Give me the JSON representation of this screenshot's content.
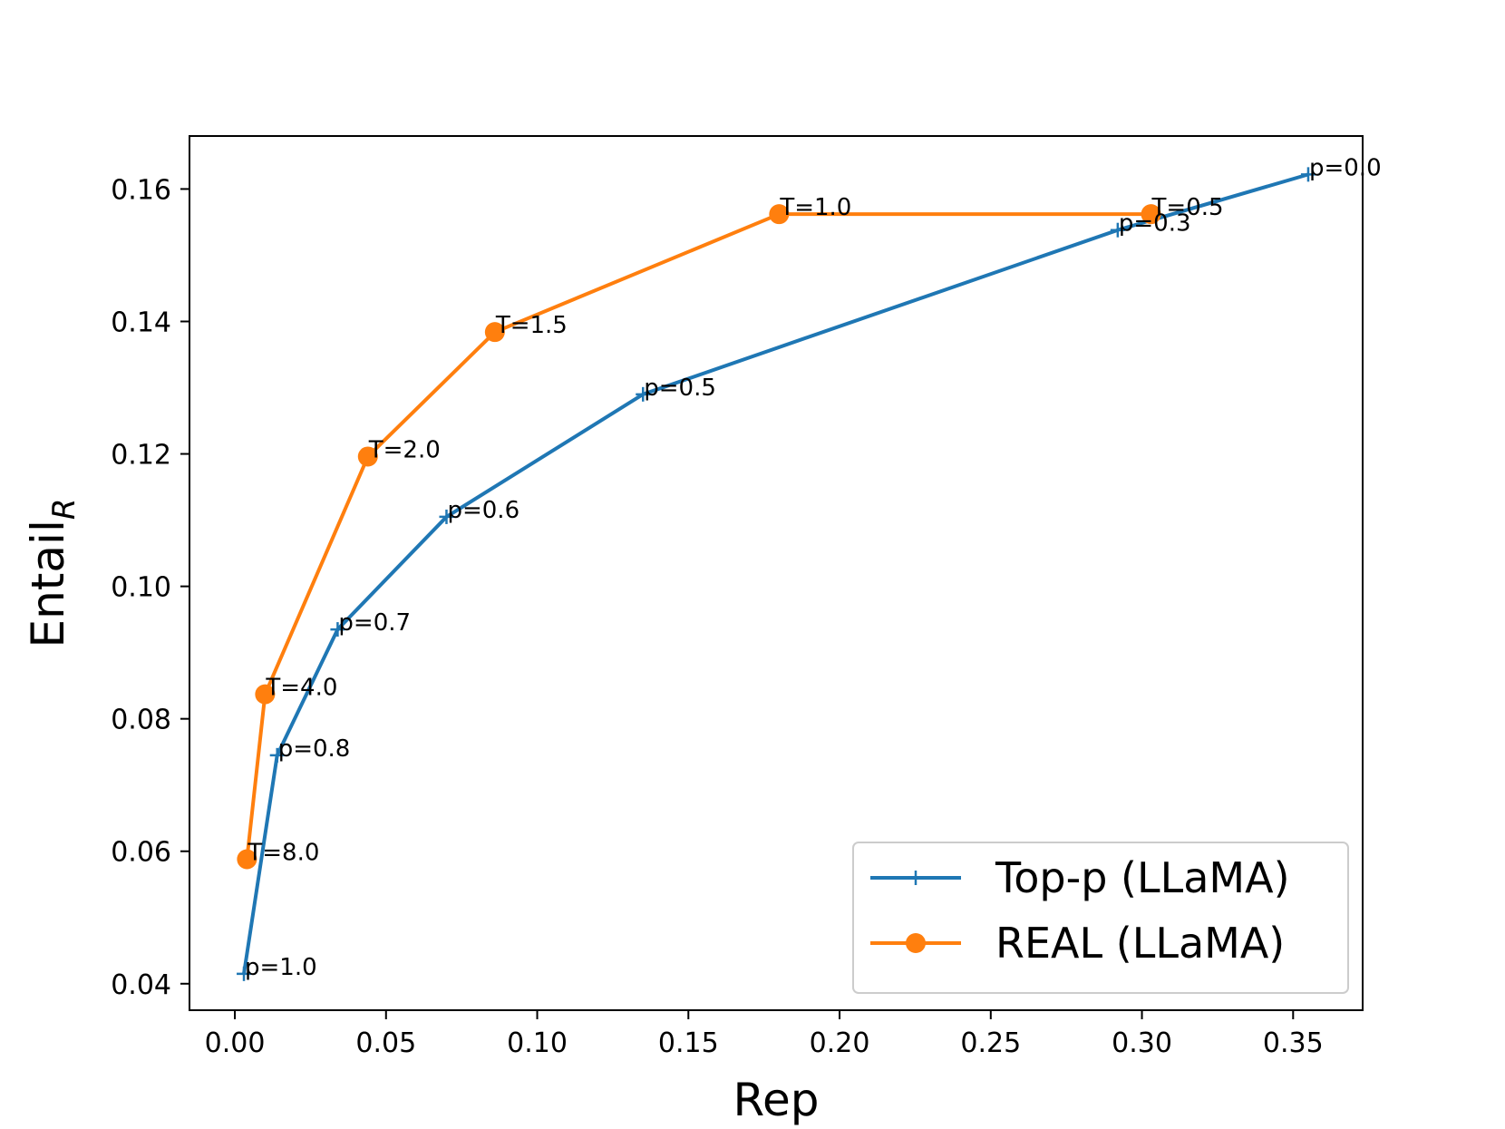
{
  "chart_data": {
    "type": "line",
    "xlabel": "Rep",
    "ylabel_main": "Entail",
    "ylabel_sub": "R",
    "xlim": [
      -0.015,
      0.373
    ],
    "ylim": [
      0.036,
      0.168
    ],
    "xticks": [
      0.0,
      0.05,
      0.1,
      0.15,
      0.2,
      0.25,
      0.3,
      0.35
    ],
    "xtick_labels": [
      "0.00",
      "0.05",
      "0.10",
      "0.15",
      "0.20",
      "0.25",
      "0.30",
      "0.35"
    ],
    "yticks": [
      0.04,
      0.06,
      0.08,
      0.1,
      0.12,
      0.14,
      0.16
    ],
    "ytick_labels": [
      "0.04",
      "0.06",
      "0.08",
      "0.10",
      "0.12",
      "0.14",
      "0.16"
    ],
    "grid": false,
    "legend_position": "bottom-right",
    "series": [
      {
        "name": "Top-p (LLaMA)",
        "color": "#1f77b4",
        "marker": "plus",
        "points": [
          {
            "x": 0.003,
            "y": 0.0415,
            "label": "p=1.0"
          },
          {
            "x": 0.014,
            "y": 0.0745,
            "label": "p=0.8"
          },
          {
            "x": 0.034,
            "y": 0.0935,
            "label": "p=0.7"
          },
          {
            "x": 0.07,
            "y": 0.1105,
            "label": "p=0.6"
          },
          {
            "x": 0.135,
            "y": 0.129,
            "label": "p=0.5"
          },
          {
            "x": 0.292,
            "y": 0.1538,
            "label": "p=0.3"
          },
          {
            "x": 0.355,
            "y": 0.1622,
            "label": "p=0.0"
          }
        ]
      },
      {
        "name": "REAL (LLaMA)",
        "color": "#ff7f0e",
        "marker": "circle",
        "points": [
          {
            "x": 0.004,
            "y": 0.0588,
            "label": "T=8.0"
          },
          {
            "x": 0.01,
            "y": 0.0837,
            "label": "T=4.0"
          },
          {
            "x": 0.044,
            "y": 0.1196,
            "label": "T=2.0"
          },
          {
            "x": 0.086,
            "y": 0.1384,
            "label": "T=1.5"
          },
          {
            "x": 0.18,
            "y": 0.1562,
            "label": "T=1.0"
          },
          {
            "x": 0.303,
            "y": 0.1562,
            "label": "T=0.5"
          }
        ]
      }
    ]
  }
}
